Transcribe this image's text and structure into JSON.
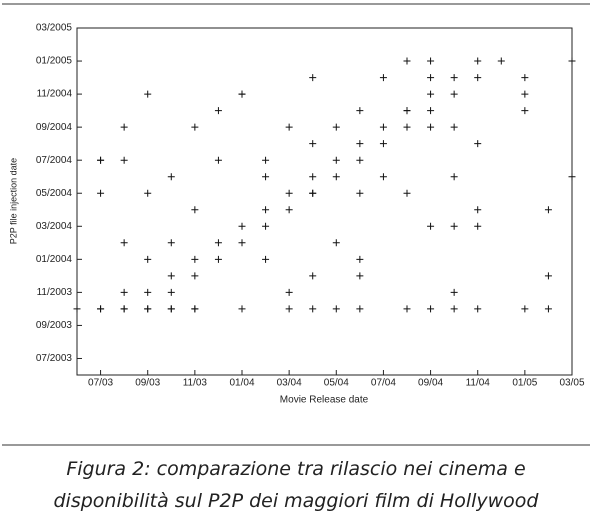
{
  "chart_data": {
    "type": "scatter",
    "xlabel": "Movie Release date",
    "ylabel": "P2P file injection date",
    "caption": [
      "Figura 2: comparazione tra rilascio nei cinema e",
      "disponibilità sul P2P dei maggiori film di Hollywood"
    ],
    "xlim": [
      "2003-06",
      "2005-03"
    ],
    "ylim": [
      "2003-06",
      "2005-03"
    ],
    "xticks": [
      {
        "value": "2003-07",
        "label": "07/03"
      },
      {
        "value": "2003-09",
        "label": "09/03"
      },
      {
        "value": "2003-11",
        "label": "11/03"
      },
      {
        "value": "2004-01",
        "label": "01/04"
      },
      {
        "value": "2004-03",
        "label": "03/04"
      },
      {
        "value": "2004-05",
        "label": "05/04"
      },
      {
        "value": "2004-07",
        "label": "07/04"
      },
      {
        "value": "2004-09",
        "label": "09/04"
      },
      {
        "value": "2004-11",
        "label": "11/04"
      },
      {
        "value": "2005-01",
        "label": "01/05"
      },
      {
        "value": "2005-03",
        "label": "03/05"
      }
    ],
    "yticks": [
      {
        "value": "2003-07",
        "label": "07/2003"
      },
      {
        "value": "2003-09",
        "label": "09/2003"
      },
      {
        "value": "2003-11",
        "label": "11/2003"
      },
      {
        "value": "2004-01",
        "label": "01/2004"
      },
      {
        "value": "2004-03",
        "label": "03/2004"
      },
      {
        "value": "2004-05",
        "label": "05/2004"
      },
      {
        "value": "2004-07",
        "label": "07/2004"
      },
      {
        "value": "2004-09",
        "label": "09/2004"
      },
      {
        "value": "2004-11",
        "label": "11/2004"
      },
      {
        "value": "2005-01",
        "label": "01/2005"
      },
      {
        "value": "2005-03",
        "label": "03/2005"
      }
    ],
    "color": "#111",
    "series": [
      {
        "x": [
          "2003-06",
          "2003-07",
          "2003-07",
          "2003-08",
          "2003-08",
          "2003-09",
          "2003-09",
          "2003-10",
          "2003-10",
          "2003-11",
          "2003-11",
          "2004-01",
          "2004-03",
          "2004-04",
          "2004-05",
          "2004-06",
          "2004-08",
          "2004-09",
          "2004-10",
          "2004-11",
          "2005-01",
          "2005-02",
          "2003-08",
          "2003-09",
          "2003-10",
          "2003-10",
          "2003-11",
          "2003-11",
          "2003-12",
          "2003-12",
          "2004-01",
          "2004-01",
          "2004-02",
          "2004-02",
          "2004-03",
          "2004-03",
          "2004-04",
          "2004-04",
          "2004-05",
          "2004-05",
          "2004-06",
          "2004-06",
          "2004-07",
          "2004-07",
          "2004-08",
          "2004-08",
          "2004-09",
          "2004-09",
          "2004-10",
          "2004-10",
          "2004-11",
          "2004-11",
          "2004-12",
          "2003-07",
          "2003-07",
          "2003-07",
          "2003-08",
          "2003-08",
          "2003-09",
          "2003-09",
          "2003-08",
          "2003-09",
          "2003-10",
          "2003-10",
          "2003-11",
          "2003-11",
          "2003-12",
          "2003-12",
          "2004-01",
          "2004-01",
          "2004-02",
          "2004-02",
          "2004-02",
          "2004-03",
          "2004-03",
          "2004-04",
          "2004-04",
          "2004-04",
          "2004-04",
          "2004-05",
          "2004-05",
          "2004-06",
          "2004-06",
          "2004-06",
          "2004-06",
          "2004-07",
          "2004-07",
          "2004-08",
          "2004-08",
          "2004-08",
          "2004-09",
          "2004-09",
          "2004-09",
          "2004-09",
          "2004-10",
          "2004-10",
          "2004-10",
          "2004-10",
          "2004-11",
          "2004-11",
          "2004-11",
          "2005-01",
          "2005-01",
          "2005-01",
          "2005-02",
          "2005-02",
          "2005-03",
          "2005-03"
        ],
        "y": [
          "2003-10",
          "2003-10",
          "2003-10",
          "2003-10",
          "2003-10",
          "2003-10",
          "2003-10",
          "2003-10",
          "2003-10",
          "2003-10",
          "2003-10",
          "2003-10",
          "2003-10",
          "2003-10",
          "2003-10",
          "2003-10",
          "2003-10",
          "2003-10",
          "2003-10",
          "2003-10",
          "2003-10",
          "2003-10",
          "2003-11",
          "2003-11",
          "2003-11",
          "2003-12",
          "2003-12",
          "2004-01",
          "2004-01",
          "2004-02",
          "2004-02",
          "2004-03",
          "2004-03",
          "2004-04",
          "2004-04",
          "2004-05",
          "2004-05",
          "2004-06",
          "2004-06",
          "2004-07",
          "2004-07",
          "2004-08",
          "2004-08",
          "2004-09",
          "2004-09",
          "2004-10",
          "2004-10",
          "2004-11",
          "2004-11",
          "2004-12",
          "2004-12",
          "2005-01",
          "2005-01",
          "2004-07",
          "2004-07",
          "2004-05",
          "2004-09",
          "2004-07",
          "2004-11",
          "2004-05",
          "2004-02",
          "2004-01",
          "2004-06",
          "2004-02",
          "2004-09",
          "2004-04",
          "2004-10",
          "2004-07",
          "2004-11",
          "2004-11",
          "2004-06",
          "2004-07",
          "2004-01",
          "2004-09",
          "2003-11",
          "2004-12",
          "2003-12",
          "2004-08",
          "2004-05",
          "2004-09",
          "2004-02",
          "2003-12",
          "2004-10",
          "2004-05",
          "2004-01",
          "2004-06",
          "2004-12",
          "2004-10",
          "2004-05",
          "2005-01",
          "2004-03",
          "2005-01",
          "2004-12",
          "2004-09",
          "2003-11",
          "2004-03",
          "2004-09",
          "2004-06",
          "2004-03",
          "2004-08",
          "2004-04",
          "2004-10",
          "2004-12",
          "2004-11",
          "2003-12",
          "2004-04",
          "2005-01",
          "2004-06"
        ]
      }
    ]
  }
}
